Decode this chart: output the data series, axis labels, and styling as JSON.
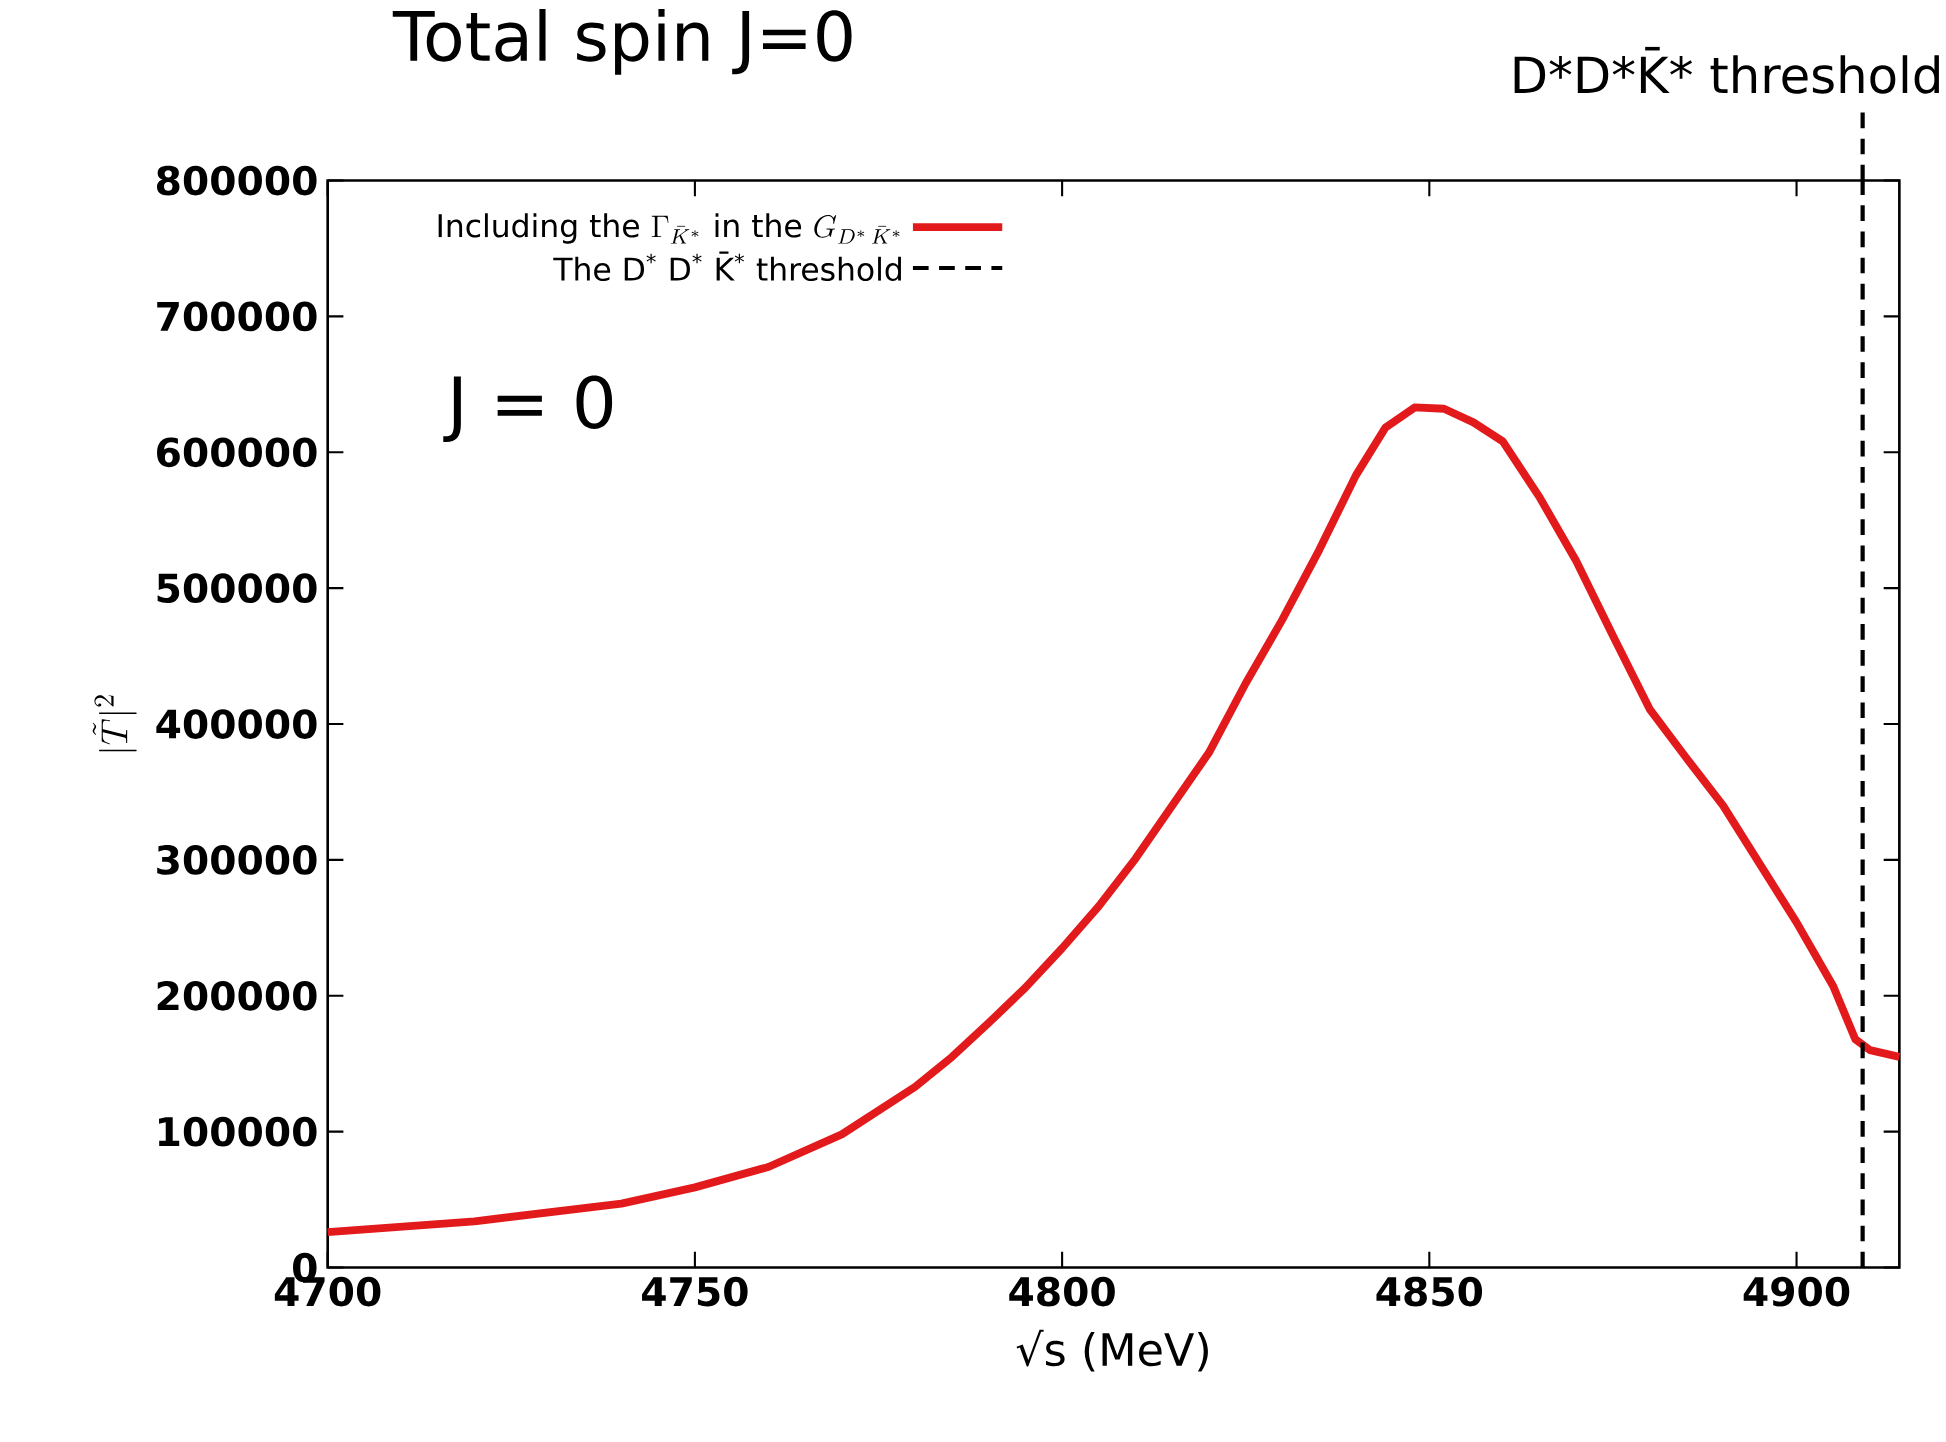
{
  "chart_data": {
    "type": "line",
    "title": "Total spin J=0",
    "xlabel": "√s (MeV)",
    "ylabel": "|\\tilde{T}|^{2}",
    "annotations": [
      "D*D*K̄* threshold",
      "J = 0"
    ],
    "x": [
      4700,
      4720,
      4740,
      4750,
      4760,
      4770,
      4780,
      4785,
      4790,
      4795,
      4800,
      4805,
      4810,
      4815,
      4820,
      4825,
      4830,
      4835,
      4840,
      4844,
      4848,
      4852,
      4856,
      4860,
      4865,
      4870,
      4875,
      4880,
      4885,
      4890,
      4895,
      4900,
      4905,
      4908,
      4910,
      4914
    ],
    "series": [
      {
        "name": "\\text{Including the }\\Gamma_{\\bar{K}^{*}}\\text{ in the }G_{D^{*}\\,\\bar{K}^{*}}",
        "color": "#e31a1c",
        "values": [
          26000,
          34000,
          47000,
          59000,
          74000,
          98000,
          133000,
          155000,
          180000,
          206000,
          235000,
          266000,
          301000,
          340000,
          379000,
          430000,
          477000,
          528000,
          583000,
          618000,
          633000,
          632000,
          622000,
          608000,
          567000,
          520000,
          465000,
          411000,
          375000,
          340000,
          297000,
          254000,
          207000,
          168000,
          160000,
          155000
        ]
      }
    ],
    "ref_lines": [
      {
        "axis": "x",
        "value": 4909,
        "label": "The D$^{*}$ D$^{*}$ K̄$^{*}$ threshold",
        "color": "#000000",
        "line_style": "dashed"
      }
    ],
    "xlim": [
      4700,
      4914
    ],
    "ylim": [
      0,
      800000
    ],
    "xticks": [
      4700,
      4750,
      4800,
      4850,
      4900
    ],
    "yticks": [
      0,
      100000,
      200000,
      300000,
      400000,
      500000,
      600000,
      700000,
      800000
    ],
    "legend": "top left",
    "grid": false,
    "marker": "none",
    "line_style": "solid"
  }
}
